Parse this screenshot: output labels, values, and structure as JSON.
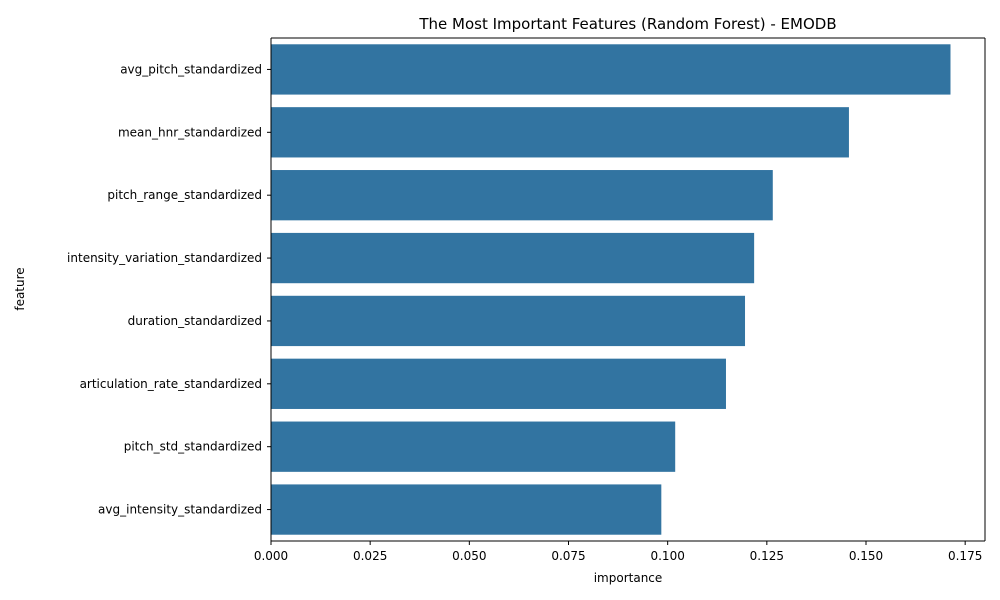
{
  "chart_data": {
    "type": "bar",
    "orientation": "horizontal",
    "title": "The Most Important Features (Random Forest) - EMODB",
    "xlabel": "importance",
    "ylabel": "feature",
    "categories": [
      "avg_pitch_standardized",
      "mean_hnr_standardized",
      "pitch_range_standardized",
      "intensity_variation_standardized",
      "duration_standardized",
      "articulation_rate_standardized",
      "pitch_std_standardized",
      "avg_intensity_standardized"
    ],
    "values": [
      0.1713,
      0.1457,
      0.1265,
      0.1218,
      0.1195,
      0.1147,
      0.1019,
      0.0984
    ],
    "xlim": [
      0,
      0.18
    ],
    "xticks": [
      "0.000",
      "0.025",
      "0.050",
      "0.075",
      "0.100",
      "0.125",
      "0.150",
      "0.175"
    ],
    "grid": false,
    "colors": {
      "bar": "#3274a1"
    }
  }
}
